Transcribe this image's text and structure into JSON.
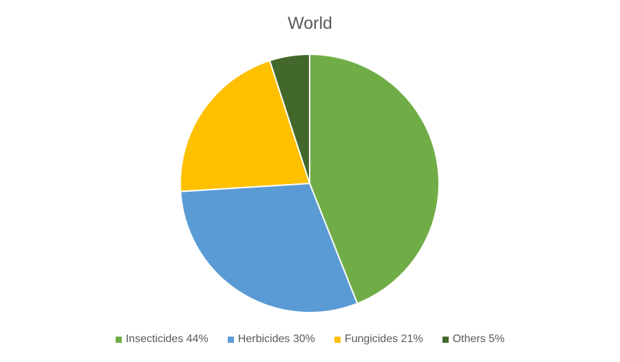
{
  "chart_data": {
    "type": "pie",
    "title": "World",
    "categories": [
      "Insecticides",
      "Herbicides",
      "Fungicides",
      "Others"
    ],
    "values": [
      44,
      30,
      21,
      5
    ],
    "unit": "%",
    "colors": [
      "#70ad47",
      "#5b9bd5",
      "#ffc000",
      "#43682b"
    ],
    "legend_labels": [
      "Insecticides 44%",
      "Herbicides 30%",
      "Fungicides 21%",
      "Others 5%"
    ],
    "legend_position": "bottom",
    "start_angle": "top (12 o'clock), clockwise"
  }
}
